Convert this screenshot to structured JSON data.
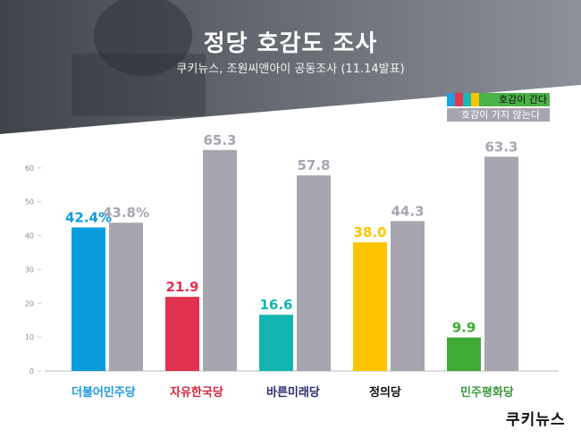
{
  "header": {
    "title": "정당 호감도 조사",
    "subtitle": "쿠키뉴스, 조원씨앤아이 공동조사 (11.14발표)"
  },
  "legend": {
    "like_label": "호감이 간다",
    "dislike_label": "호감이 가지  않는다",
    "like_swatches": [
      "#1f9fe0",
      "#e23552",
      "#1ab8b3",
      "#f9c400"
    ],
    "like_color": "#4bb048",
    "dislike_color": "#a7a5b0"
  },
  "chart_data": {
    "type": "bar",
    "title": "정당 호감도 조사",
    "categories": [
      "더불어민주당",
      "자유한국당",
      "바른미래당",
      "정의당",
      "민주평화당"
    ],
    "series": [
      {
        "name": "호감이 간다",
        "values": [
          42.4,
          21.9,
          16.6,
          38.0,
          9.9
        ],
        "labels": [
          "42.4%",
          "21.9",
          "16.6",
          "38.0",
          "9.9"
        ],
        "colors": [
          "#0a9cdc",
          "#e0324f",
          "#12b5b0",
          "#fbc300",
          "#3fab35"
        ]
      },
      {
        "name": "호감이 가지  않는다",
        "values": [
          43.8,
          65.3,
          57.8,
          44.3,
          63.3
        ],
        "labels": [
          "43.8%",
          "65.3",
          "57.8",
          "44.3",
          "63.3"
        ],
        "color": "#a7a5b0"
      }
    ],
    "yticks": [
      0,
      10,
      20,
      30,
      40,
      50,
      60
    ],
    "ylim": [
      0,
      70
    ],
    "grid": false,
    "legend_position": "top-right"
  },
  "party_colors": [
    "#1f9be0",
    "#d7263d",
    "#2b2b6b",
    "#111111",
    "#3a9a3a"
  ],
  "brand": "쿠키뉴스"
}
